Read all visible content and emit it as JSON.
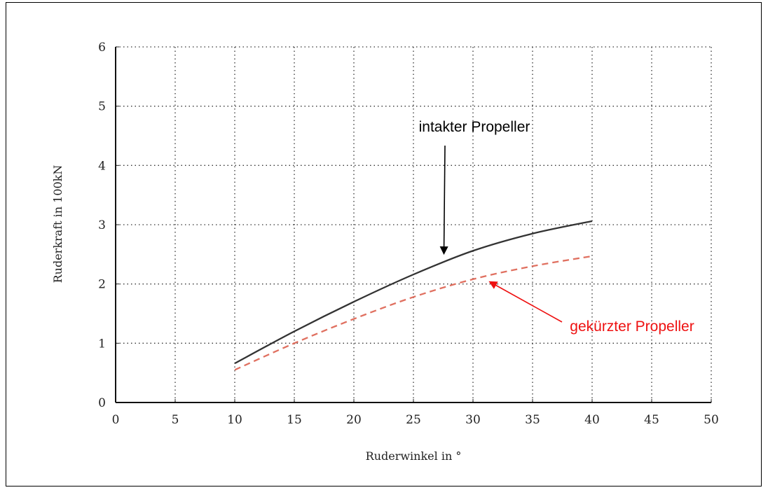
{
  "chart_data": {
    "type": "line",
    "title": "",
    "xlabel": "Ruderwinkel in °",
    "ylabel": "Ruderkraft in 100kN",
    "xlim": [
      0,
      50
    ],
    "ylim": [
      0,
      6
    ],
    "xticks": [
      "0",
      "5",
      "10",
      "15",
      "20",
      "25",
      "30",
      "35",
      "40",
      "45",
      "50"
    ],
    "yticks": [
      "0",
      "1",
      "2",
      "3",
      "4",
      "5",
      "6"
    ],
    "grid": true,
    "legend": "none",
    "series": [
      {
        "name": "intakter Propeller",
        "color": "#333333",
        "style": "solid",
        "x": [
          10,
          15,
          20,
          25,
          30,
          35,
          40
        ],
        "y": [
          0.66,
          1.2,
          1.7,
          2.16,
          2.56,
          2.85,
          3.06
        ]
      },
      {
        "name": "gekürzter Propeller",
        "color": "#e07060",
        "style": "dashed",
        "x": [
          10,
          15,
          20,
          25,
          30,
          35,
          40
        ],
        "y": [
          0.55,
          1.0,
          1.41,
          1.78,
          2.08,
          2.3,
          2.47
        ]
      }
    ],
    "annotations": [
      {
        "text": "intakter Propeller",
        "color": "#000000",
        "arrow_to": [
          27.5,
          2.55
        ]
      },
      {
        "text": "gekürzter Propeller",
        "color": "#ee1111",
        "arrow_to": [
          31.3,
          2.07
        ]
      }
    ]
  }
}
